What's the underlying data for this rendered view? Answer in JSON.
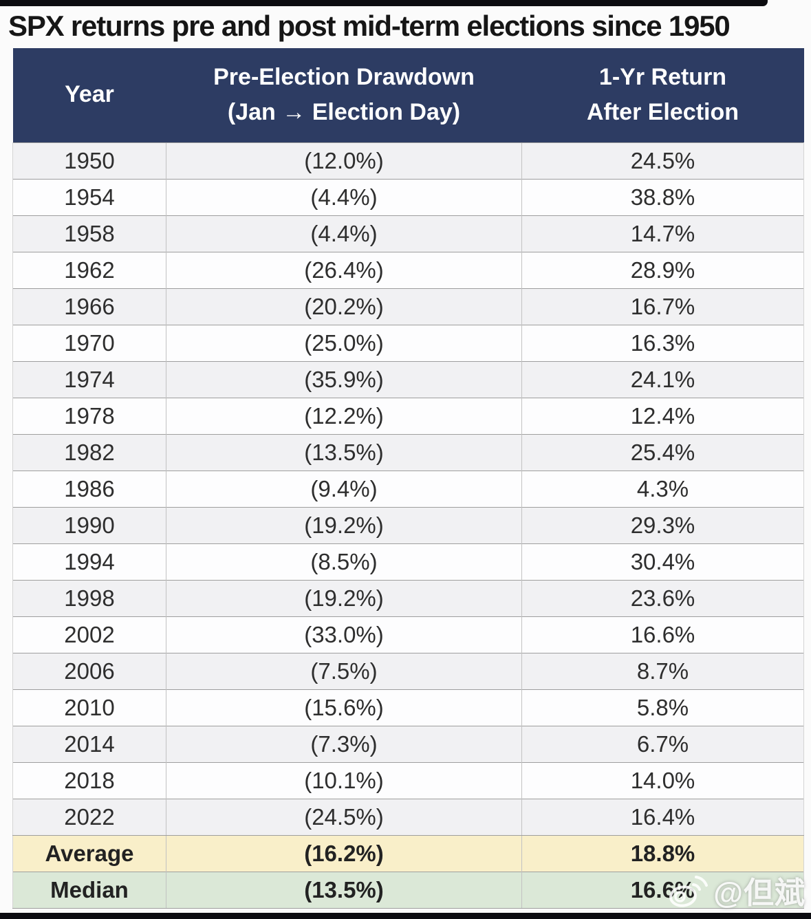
{
  "title": "SPX returns pre and post mid-term elections since 1950",
  "table": {
    "headers": {
      "year": "Year",
      "drawdown_line1": "Pre-Election Drawdown",
      "drawdown_line2": "(Jan → Election Day)",
      "return_line1": "1-Yr Return",
      "return_line2": "After Election"
    },
    "rows": [
      {
        "year": "1950",
        "drawdown": "(12.0%)",
        "return": "24.5%"
      },
      {
        "year": "1954",
        "drawdown": "(4.4%)",
        "return": "38.8%"
      },
      {
        "year": "1958",
        "drawdown": "(4.4%)",
        "return": "14.7%"
      },
      {
        "year": "1962",
        "drawdown": "(26.4%)",
        "return": "28.9%"
      },
      {
        "year": "1966",
        "drawdown": "(20.2%)",
        "return": "16.7%"
      },
      {
        "year": "1970",
        "drawdown": "(25.0%)",
        "return": "16.3%"
      },
      {
        "year": "1974",
        "drawdown": "(35.9%)",
        "return": "24.1%"
      },
      {
        "year": "1978",
        "drawdown": "(12.2%)",
        "return": "12.4%"
      },
      {
        "year": "1982",
        "drawdown": "(13.5%)",
        "return": "25.4%"
      },
      {
        "year": "1986",
        "drawdown": "(9.4%)",
        "return": "4.3%"
      },
      {
        "year": "1990",
        "drawdown": "(19.2%)",
        "return": "29.3%"
      },
      {
        "year": "1994",
        "drawdown": "(8.5%)",
        "return": "30.4%"
      },
      {
        "year": "1998",
        "drawdown": "(19.2%)",
        "return": "23.6%"
      },
      {
        "year": "2002",
        "drawdown": "(33.0%)",
        "return": "16.6%"
      },
      {
        "year": "2006",
        "drawdown": "(7.5%)",
        "return": "8.7%"
      },
      {
        "year": "2010",
        "drawdown": "(15.6%)",
        "return": "5.8%"
      },
      {
        "year": "2014",
        "drawdown": "(7.3%)",
        "return": "6.7%"
      },
      {
        "year": "2018",
        "drawdown": "(10.1%)",
        "return": "14.0%"
      },
      {
        "year": "2022",
        "drawdown": "(24.5%)",
        "return": "16.4%"
      }
    ],
    "summary": [
      {
        "label": "Average",
        "drawdown": "(16.2%)",
        "return": "18.8%"
      },
      {
        "label": "Median",
        "drawdown": "(13.5%)",
        "return": "16.6%"
      }
    ]
  },
  "watermark": {
    "icon": "weibo-icon",
    "text": "@但斌"
  },
  "colors": {
    "header_navy": "#2d3c63",
    "row_gray": "#f1f1f3",
    "row_white": "#fdfdfe",
    "average_yellow": "#f9efc9",
    "median_green": "#dbe8d7",
    "bar_black": "#0c0c10"
  },
  "chart_data": {
    "type": "table",
    "title": "SPX returns pre and post mid-term elections since 1950",
    "columns": [
      "Year",
      "Pre-Election Drawdown (Jan → Election Day)",
      "1-Yr Return After Election"
    ],
    "years": [
      1950,
      1954,
      1958,
      1962,
      1966,
      1970,
      1974,
      1978,
      1982,
      1986,
      1990,
      1994,
      1998,
      2002,
      2006,
      2010,
      2014,
      2018,
      2022
    ],
    "pre_election_drawdown_pct": [
      -12.0,
      -4.4,
      -4.4,
      -26.4,
      -20.2,
      -25.0,
      -35.9,
      -12.2,
      -13.5,
      -9.4,
      -19.2,
      -8.5,
      -19.2,
      -33.0,
      -7.5,
      -15.6,
      -7.3,
      -10.1,
      -24.5
    ],
    "one_yr_return_after_election_pct": [
      24.5,
      38.8,
      14.7,
      28.9,
      16.7,
      16.3,
      24.1,
      12.4,
      25.4,
      4.3,
      29.3,
      30.4,
      23.6,
      16.6,
      8.7,
      5.8,
      6.7,
      14.0,
      16.4
    ],
    "average": {
      "pre_election_drawdown_pct": -16.2,
      "one_yr_return_after_election_pct": 18.8
    },
    "median": {
      "pre_election_drawdown_pct": -13.5,
      "one_yr_return_after_election_pct": 16.6
    }
  }
}
